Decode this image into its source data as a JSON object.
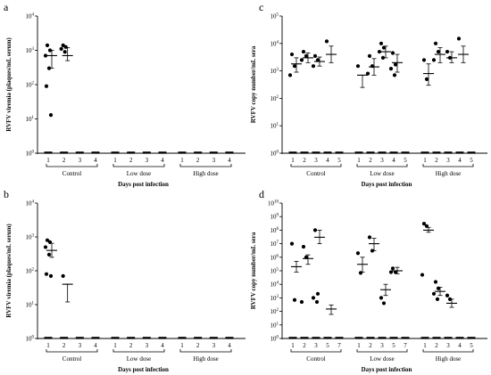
{
  "chart_data": [
    {
      "type": "scatter",
      "panel_label": "a",
      "ylabel": "RVFV viremia (plaques/mL serum)",
      "xlabel": "Days post infection",
      "log_scale": true,
      "ylim": [
        1,
        10000
      ],
      "y_ticks": [
        "10^0",
        "10^1",
        "10^2",
        "10^3",
        "10^4"
      ],
      "groups": [
        {
          "name": "Control",
          "days": [
            "1",
            "2",
            "3",
            "4"
          ]
        },
        {
          "name": "Low dose",
          "days": [
            "1",
            "2",
            "3",
            "4"
          ]
        },
        {
          "name": "High dose",
          "days": [
            "1",
            "2",
            "3",
            "4"
          ]
        }
      ],
      "series": [
        {
          "group": 0,
          "day": 0,
          "points": [
            1400,
            1000,
            700,
            300,
            90,
            13
          ],
          "mean": 700,
          "err_low": 300,
          "err_high": 1000
        },
        {
          "group": 0,
          "day": 1,
          "points": [
            1400,
            1250,
            1100,
            900
          ],
          "mean": 700,
          "err_low": 500,
          "err_high": 1200
        }
      ]
    },
    {
      "type": "scatter",
      "panel_label": "b",
      "ylabel": "RVFV viremia (plaques/mL serum)",
      "xlabel": "Days post infection",
      "log_scale": true,
      "ylim": [
        1,
        10000
      ],
      "y_ticks": [
        "10^0",
        "10^1",
        "10^2",
        "10^3",
        "10^4"
      ],
      "groups": [
        {
          "name": "Control",
          "days": [
            "1",
            "2",
            "3",
            "4"
          ]
        },
        {
          "name": "Low dose",
          "days": [
            "1",
            "2",
            "3",
            "4"
          ]
        },
        {
          "name": "High dose",
          "days": [
            "1",
            "2",
            "3",
            "4"
          ]
        }
      ],
      "series": [
        {
          "group": 0,
          "day": 0,
          "points": [
            800,
            700,
            500,
            300,
            80,
            70
          ],
          "mean": 400,
          "err_low": 250,
          "err_high": 650
        },
        {
          "group": 0,
          "day": 1,
          "points": [
            70
          ],
          "mean": 40,
          "err_low": 12,
          "err_high": 40
        }
      ]
    },
    {
      "type": "scatter",
      "panel_label": "c",
      "ylabel": "RVFV copy number/mL sera",
      "xlabel": "Days post infection",
      "log_scale": true,
      "ylim": [
        1,
        100000
      ],
      "y_ticks": [
        "10^0",
        "10^1",
        "10^2",
        "10^3",
        "10^4",
        "10^5"
      ],
      "groups": [
        {
          "name": "Control",
          "days": [
            "1",
            "2",
            "3",
            "4",
            "5"
          ]
        },
        {
          "name": "Low dose",
          "days": [
            "1",
            "2",
            "3",
            "4",
            "5"
          ]
        },
        {
          "name": "High dose",
          "days": [
            "1",
            "2",
            "3",
            "4",
            "5"
          ]
        }
      ],
      "series": [
        {
          "group": 0,
          "day": 0,
          "points": [
            4000,
            1500,
            700
          ],
          "mean": 1800,
          "err_low": 900,
          "err_high": 3000
        },
        {
          "group": 0,
          "day": 1,
          "points": [
            5000,
            3500,
            2500
          ],
          "mean": 3000,
          "err_low": 2000,
          "err_high": 4500
        },
        {
          "group": 0,
          "day": 2,
          "points": [
            3500,
            2500,
            1500
          ],
          "mean": 2200,
          "err_low": 1500,
          "err_high": 3200
        },
        {
          "group": 0,
          "day": 3,
          "points": [
            12000
          ],
          "mean": 4000,
          "err_low": 2000,
          "err_high": 8000
        },
        {
          "group": 1,
          "day": 0,
          "points": [
            1500
          ],
          "mean": 700,
          "err_low": 250,
          "err_high": 700
        },
        {
          "group": 1,
          "day": 1,
          "points": [
            3500,
            1500,
            800
          ],
          "mean": 1400,
          "err_low": 700,
          "err_high": 2800
        },
        {
          "group": 1,
          "day": 2,
          "points": [
            10000,
            7000,
            5000,
            3000
          ],
          "mean": 5000,
          "err_low": 3000,
          "err_high": 8000
        },
        {
          "group": 1,
          "day": 3,
          "points": [
            4500,
            1700,
            1200,
            700
          ],
          "mean": 2000,
          "err_low": 900,
          "err_high": 4000
        },
        {
          "group": 2,
          "day": 0,
          "points": [
            2500,
            500
          ],
          "mean": 800,
          "err_low": 300,
          "err_high": 1800
        },
        {
          "group": 2,
          "day": 1,
          "points": [
            10000,
            5000,
            2500
          ],
          "mean": 4000,
          "err_low": 2000,
          "err_high": 7000
        },
        {
          "group": 2,
          "day": 2,
          "points": [
            5000,
            3000
          ],
          "mean": 3000,
          "err_low": 2000,
          "err_high": 5000
        },
        {
          "group": 2,
          "day": 3,
          "points": [
            15000
          ],
          "mean": 4000,
          "err_low": 2000,
          "err_high": 8000
        }
      ]
    },
    {
      "type": "scatter",
      "panel_label": "d",
      "ylabel": "RVFV copy number/mL sera",
      "xlabel": "Days post infection",
      "log_scale": true,
      "ylim": [
        1,
        10000000000
      ],
      "y_ticks": [
        "10^0",
        "10^1",
        "10^2",
        "10^3",
        "10^4",
        "10^5",
        "10^6",
        "10^7",
        "10^8",
        "10^9",
        "10^10"
      ],
      "groups": [
        {
          "name": "Control",
          "days": [
            "1",
            "2",
            "3",
            "5",
            "7"
          ]
        },
        {
          "name": "Low dose",
          "days": [
            "1",
            "2",
            "3",
            "5",
            "7"
          ]
        },
        {
          "name": "High dose",
          "days": [
            "1",
            "2",
            "3",
            "4",
            "5"
          ]
        }
      ],
      "series": [
        {
          "group": 0,
          "day": 0,
          "points": [
            10000000,
            700
          ],
          "mean": 200000,
          "err_low": 80000,
          "err_high": 500000
        },
        {
          "group": 0,
          "day": 1,
          "points": [
            6000000,
            1000000,
            500
          ],
          "mean": 800000,
          "err_low": 300000,
          "err_high": 1500000
        },
        {
          "group": 0,
          "day": 2,
          "points": [
            100000000,
            2000,
            1000,
            500
          ],
          "mean": 30000000,
          "err_low": 10000000,
          "err_high": 100000000
        },
        {
          "group": 0,
          "day": 3,
          "points": [],
          "mean": 150,
          "err_low": 60,
          "err_high": 300
        },
        {
          "group": 1,
          "day": 0,
          "points": [
            2000000,
            70000
          ],
          "mean": 300000,
          "err_low": 80000,
          "err_high": 1000000
        },
        {
          "group": 1,
          "day": 1,
          "points": [
            30000000,
            3000000
          ],
          "mean": 10000000,
          "err_low": 3000000,
          "err_high": 25000000
        },
        {
          "group": 1,
          "day": 2,
          "points": [
            1000,
            400
          ],
          "mean": 4000,
          "err_low": 1500,
          "err_high": 10000
        },
        {
          "group": 1,
          "day": 3,
          "points": [
            150000,
            80000,
            80000
          ],
          "mean": 100000,
          "err_low": 60000,
          "err_high": 180000
        },
        {
          "group": 2,
          "day": 0,
          "points": [
            300000000,
            200000000,
            50000
          ],
          "mean": 100000000,
          "err_low": 70000000,
          "err_high": 160000000
        },
        {
          "group": 2,
          "day": 1,
          "points": [
            15000,
            5000,
            2000,
            800
          ],
          "mean": 3000,
          "err_low": 1500,
          "err_high": 6000
        },
        {
          "group": 2,
          "day": 2,
          "points": [
            1500,
            800
          ],
          "mean": 400,
          "err_low": 200,
          "err_high": 800
        }
      ]
    }
  ]
}
